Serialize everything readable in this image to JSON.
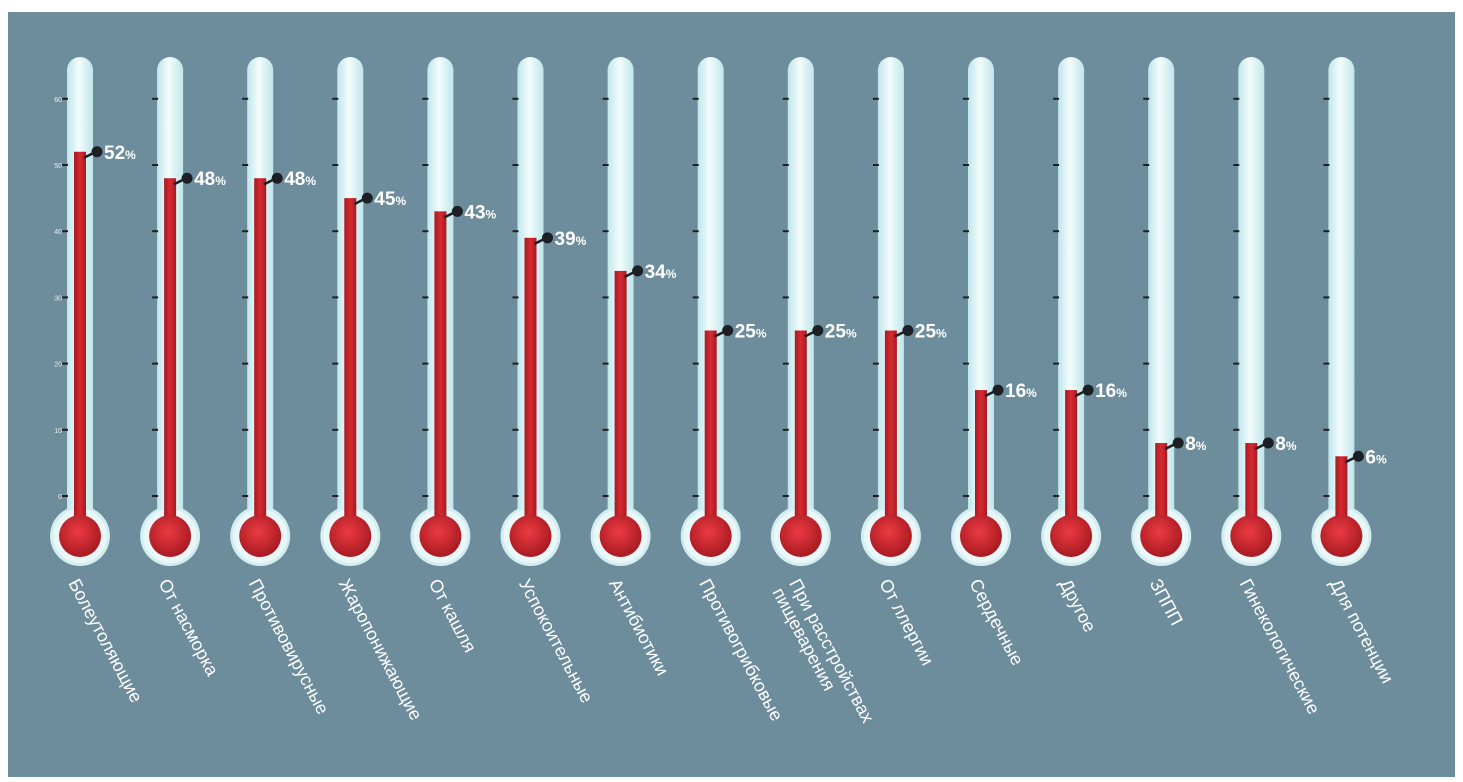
{
  "chart_data": {
    "type": "bar",
    "style": "thermometer",
    "categories": [
      "Болеутоляющие",
      "От насморка",
      "Противовирусные",
      "Жаропонижающие",
      "От кашля",
      "Успокоительные",
      "Антибиотики",
      "Противогрибковые",
      "При расстройствах пищеварения",
      "От ллергии",
      "Сердечные",
      "Другое",
      "ЗППП",
      "Гинекологические",
      "Для потенции"
    ],
    "values": [
      52,
      48,
      48,
      45,
      43,
      39,
      34,
      25,
      25,
      25,
      16,
      16,
      8,
      8,
      6
    ],
    "value_suffix": "%",
    "value_labels": [
      "52",
      "48",
      "48",
      "45",
      "43",
      "39",
      "34",
      "25",
      "25",
      "25",
      "16",
      "16",
      "8",
      "8",
      "6"
    ],
    "ylim": [
      0,
      65
    ],
    "yticks": [
      "0",
      "10",
      "20",
      "30",
      "40",
      "50",
      "60"
    ],
    "grid": false,
    "title": "",
    "xlabel": "",
    "ylabel": "",
    "colors": {
      "background": "#6d8d9c",
      "page": "#ffffff",
      "tube": "#dff2f4",
      "tube_edge": "#bfe6ea",
      "bulb_ring": "#d2eef1",
      "mercury": "#d62a32",
      "mercury_dark": "#a81a22",
      "dot": "#1c1f24",
      "label": "#ffffff",
      "tick": "#1c1f24"
    }
  }
}
